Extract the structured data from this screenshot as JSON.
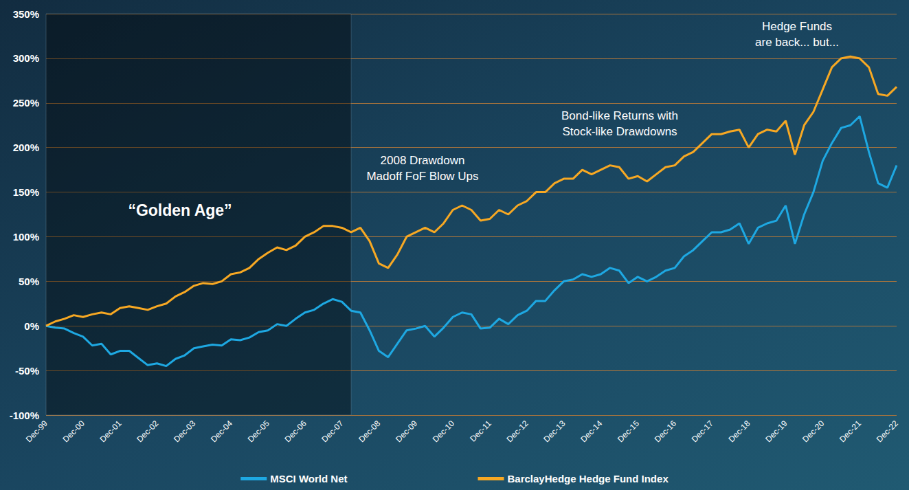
{
  "chart_data": {
    "type": "line",
    "categories": [
      "Dec-99",
      null,
      null,
      null,
      "Dec-00",
      null,
      null,
      null,
      "Dec-01",
      null,
      null,
      null,
      "Dec-02",
      null,
      null,
      null,
      "Dec-03",
      null,
      null,
      null,
      "Dec-04",
      null,
      null,
      null,
      "Dec-05",
      null,
      null,
      null,
      "Dec-06",
      null,
      null,
      null,
      "Dec-07",
      null,
      null,
      null,
      "Dec-08",
      null,
      null,
      null,
      "Dec-09",
      null,
      null,
      null,
      "Dec-10",
      null,
      null,
      null,
      "Dec-11",
      null,
      null,
      null,
      "Dec-12",
      null,
      null,
      null,
      "Dec-13",
      null,
      null,
      null,
      "Dec-14",
      null,
      null,
      null,
      "Dec-15",
      null,
      null,
      null,
      "Dec-16",
      null,
      null,
      null,
      "Dec-17",
      null,
      null,
      null,
      "Dec-18",
      null,
      null,
      null,
      "Dec-19",
      null,
      null,
      null,
      "Dec-20",
      null,
      null,
      null,
      "Dec-21",
      null,
      null,
      null,
      "Dec-22"
    ],
    "series": [
      {
        "name": "MSCI World Net",
        "color": "#1ea8e2",
        "values": [
          0,
          -2,
          -3,
          -8,
          -12,
          -22,
          -20,
          -32,
          -28,
          -28,
          -36,
          -44,
          -42,
          -45,
          -37,
          -33,
          -25,
          -23,
          -21,
          -22,
          -15,
          -16,
          -13,
          -7,
          -5,
          2,
          0,
          8,
          15,
          18,
          25,
          30,
          27,
          17,
          15,
          -5,
          -28,
          -35,
          -20,
          -5,
          -3,
          0,
          -12,
          -2,
          10,
          15,
          13,
          -3,
          -2,
          8,
          2,
          12,
          17,
          28,
          28,
          40,
          50,
          52,
          58,
          55,
          58,
          65,
          62,
          48,
          55,
          50,
          55,
          62,
          65,
          78,
          85,
          95,
          105,
          105,
          108,
          115,
          92,
          110,
          115,
          118,
          135,
          92,
          125,
          150,
          185,
          205,
          222,
          225,
          235,
          195,
          160,
          155,
          180
        ]
      },
      {
        "name": "BarclayHedge Hedge Fund Index",
        "color": "#f7a823",
        "values": [
          0,
          5,
          8,
          12,
          10,
          13,
          15,
          13,
          20,
          22,
          20,
          18,
          22,
          25,
          33,
          38,
          45,
          48,
          47,
          50,
          58,
          60,
          65,
          75,
          82,
          88,
          85,
          90,
          100,
          105,
          112,
          112,
          110,
          105,
          110,
          95,
          70,
          65,
          80,
          100,
          105,
          110,
          105,
          115,
          130,
          135,
          130,
          118,
          120,
          130,
          125,
          135,
          140,
          150,
          150,
          160,
          165,
          165,
          175,
          170,
          175,
          180,
          178,
          165,
          168,
          162,
          170,
          178,
          180,
          190,
          195,
          205,
          215,
          215,
          218,
          220,
          200,
          215,
          220,
          218,
          230,
          192,
          225,
          240,
          265,
          290,
          300,
          302,
          300,
          290,
          260,
          258,
          268
        ]
      }
    ],
    "ylim": [
      -100,
      350
    ],
    "yticks": [
      {
        "value": -100,
        "label": "-100%"
      },
      {
        "value": -50,
        "label": "-50%"
      },
      {
        "value": 0,
        "label": "0%"
      },
      {
        "value": 50,
        "label": "50%"
      },
      {
        "value": 100,
        "label": "100%"
      },
      {
        "value": 150,
        "label": "150%"
      },
      {
        "value": 200,
        "label": "200%"
      },
      {
        "value": 250,
        "label": "250%"
      },
      {
        "value": 300,
        "label": "300%"
      },
      {
        "value": 350,
        "label": "350%"
      }
    ],
    "grid": true,
    "legend": "bottom",
    "annotations": [
      {
        "text": "“Golden Age”",
        "from": 0,
        "to": 33
      },
      {
        "text": "2008 Drawdown\nMadoff FoF Blow Ups"
      },
      {
        "text": "Bond-like Returns with\nStock-like Drawdowns"
      },
      {
        "text": "Hedge Funds\nare back... but..."
      }
    ]
  }
}
